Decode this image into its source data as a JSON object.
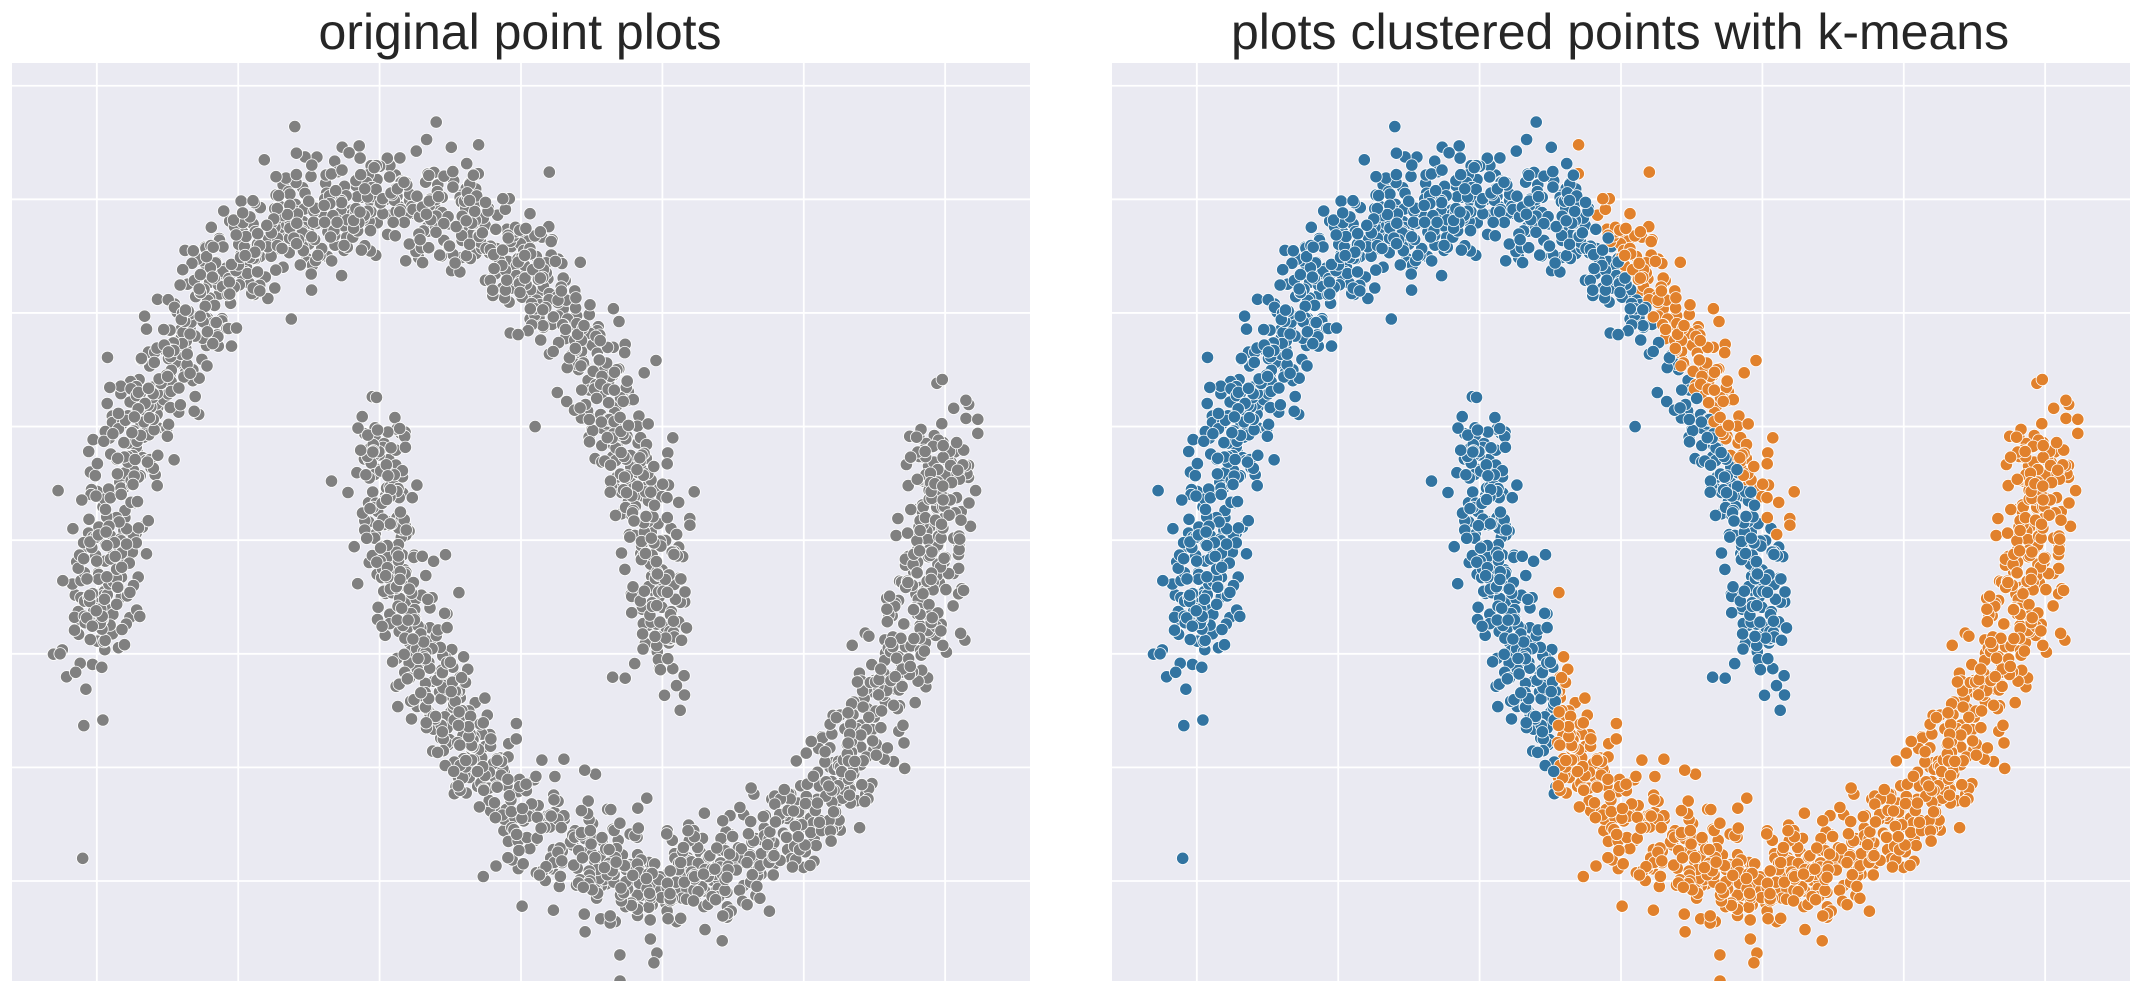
{
  "colors": {
    "background": "#EAEAF2",
    "grid": "#FFFFFF",
    "point_gray": "#808080",
    "cluster_blue": "#3274A1",
    "cluster_orange": "#E1812C",
    "point_edge": "#FFFFFF"
  },
  "chart_data": [
    {
      "type": "scatter",
      "title": "original point plots",
      "xlabel": "",
      "ylabel": "",
      "xlim": [
        -1.3,
        2.3
      ],
      "ylim": [
        -0.72,
        1.3
      ],
      "xticks": [
        -1.0,
        -0.5,
        0.0,
        0.5,
        1.0,
        1.5,
        2.0
      ],
      "yticks": [
        -0.5,
        -0.25,
        0.0,
        0.25,
        0.5,
        0.75,
        1.0,
        1.25
      ],
      "tick_labels_visible": false,
      "grid": true,
      "legend": "none",
      "series": [
        {
          "color": "#808080",
          "curve": "upper-moon",
          "points": [
            [
              -1.0,
              0.0
            ],
            [
              -0.95,
              0.3
            ],
            [
              -0.85,
              0.5
            ],
            [
              -0.7,
              0.7
            ],
            [
              -0.5,
              0.87
            ],
            [
              -0.25,
              0.97
            ],
            [
              0.0,
              1.0
            ],
            [
              0.25,
              0.97
            ],
            [
              0.5,
              0.87
            ],
            [
              0.7,
              0.7
            ],
            [
              0.85,
              0.5
            ],
            [
              0.95,
              0.3
            ],
            [
              1.0,
              0.0
            ]
          ]
        },
        {
          "color": "#808080",
          "curve": "lower-moon",
          "points": [
            [
              0.0,
              0.5
            ],
            [
              0.05,
              0.2
            ],
            [
              0.15,
              0.0
            ],
            [
              0.3,
              -0.2
            ],
            [
              0.5,
              -0.37
            ],
            [
              0.75,
              -0.47
            ],
            [
              1.0,
              -0.5
            ],
            [
              1.25,
              -0.47
            ],
            [
              1.5,
              -0.37
            ],
            [
              1.7,
              -0.2
            ],
            [
              1.85,
              0.0
            ],
            [
              1.95,
              0.2
            ],
            [
              2.0,
              0.5
            ]
          ]
        }
      ]
    },
    {
      "type": "scatter",
      "title": "plots clustered points with k-means",
      "xlabel": "",
      "ylabel": "",
      "xlim": [
        -1.3,
        2.3
      ],
      "ylim": [
        -0.72,
        1.3
      ],
      "xticks": [
        -1.0,
        -0.5,
        0.0,
        0.5,
        1.0,
        1.5,
        2.0
      ],
      "yticks": [
        -0.5,
        -0.25,
        0.0,
        0.25,
        0.5,
        0.75,
        1.0,
        1.25
      ],
      "tick_labels_visible": false,
      "grid": true,
      "legend": "none",
      "series": [
        {
          "color": "#3274A1",
          "curve": "upper-moon left part + lower-moon left part",
          "points": [
            [
              -1.0,
              0.0
            ],
            [
              -0.95,
              0.3
            ],
            [
              -0.85,
              0.5
            ],
            [
              -0.7,
              0.7
            ],
            [
              -0.5,
              0.87
            ],
            [
              -0.25,
              0.97
            ],
            [
              0.0,
              1.0
            ],
            [
              0.25,
              0.97
            ],
            [
              0.5,
              0.87
            ],
            [
              0.7,
              0.7
            ],
            [
              0.0,
              0.5
            ],
            [
              0.05,
              0.2
            ],
            [
              0.15,
              0.0
            ],
            [
              0.25,
              -0.15
            ]
          ]
        },
        {
          "color": "#E1812C",
          "curve": "upper-moon right part + lower-moon right part",
          "points": [
            [
              0.75,
              0.6
            ],
            [
              0.85,
              0.5
            ],
            [
              0.95,
              0.3
            ],
            [
              1.0,
              0.0
            ],
            [
              0.3,
              -0.2
            ],
            [
              0.5,
              -0.37
            ],
            [
              0.75,
              -0.47
            ],
            [
              1.0,
              -0.5
            ],
            [
              1.25,
              -0.47
            ],
            [
              1.5,
              -0.37
            ],
            [
              1.7,
              -0.2
            ],
            [
              1.85,
              0.0
            ],
            [
              1.95,
              0.2
            ],
            [
              2.0,
              0.5
            ]
          ]
        }
      ]
    }
  ]
}
